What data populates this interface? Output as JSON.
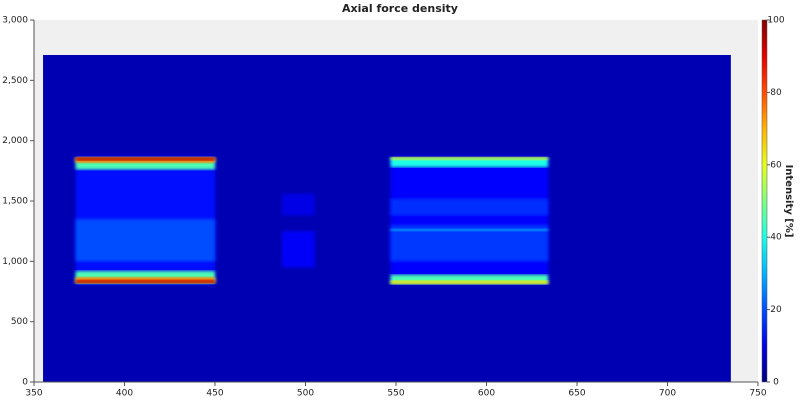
{
  "chart_data": {
    "type": "heatmap",
    "title": "Axial force density",
    "colorbar_label": "Intensity [%]",
    "colormap": "jet",
    "xlim": [
      350,
      750
    ],
    "xticks": [
      350,
      400,
      450,
      500,
      550,
      600,
      650,
      700,
      750
    ],
    "ylim": [
      0,
      3000
    ],
    "yticks": [
      0,
      500,
      {
        "value": 1000,
        "label": "1,000"
      },
      {
        "value": 1500,
        "label": "1,500"
      },
      {
        "value": 2000,
        "label": "2,000"
      },
      {
        "value": 2500,
        "label": "2,500"
      },
      {
        "value": 3000,
        "label": "3,000"
      }
    ],
    "zlim": [
      0,
      100
    ],
    "zticks": [
      0,
      20,
      40,
      60,
      80,
      100
    ],
    "regions": [
      {
        "x": [
          355,
          735
        ],
        "y": [
          0,
          2710
        ],
        "value": 5
      },
      {
        "x": [
          373,
          450
        ],
        "y": [
          810,
          1870
        ],
        "value": 14
      },
      {
        "x": [
          373,
          450
        ],
        "y": [
          1000,
          1350
        ],
        "value": 20
      },
      {
        "x": [
          487,
          505
        ],
        "y": [
          950,
          1250
        ],
        "value": 12
      },
      {
        "x": [
          487,
          505
        ],
        "y": [
          1380,
          1560
        ],
        "value": 10
      },
      {
        "x": [
          547,
          634
        ],
        "y": [
          810,
          1870
        ],
        "value": 13
      },
      {
        "x": [
          547,
          634
        ],
        "y": [
          1000,
          1300
        ],
        "value": 18
      },
      {
        "x": [
          547,
          634
        ],
        "y": [
          1380,
          1520
        ],
        "value": 17
      },
      {
        "x": [
          547,
          634
        ],
        "y": [
          1250,
          1270
        ],
        "value": 30
      },
      {
        "x": [
          373,
          450
        ],
        "y": [
          1760,
          1860
        ],
        "value": 45
      },
      {
        "x": [
          373,
          450
        ],
        "y": [
          1815,
          1865
        ],
        "value": 75
      },
      {
        "x": [
          373,
          450
        ],
        "y": [
          1835,
          1860
        ],
        "value": 95
      },
      {
        "x": [
          373,
          450
        ],
        "y": [
          815,
          920
        ],
        "value": 45
      },
      {
        "x": [
          373,
          450
        ],
        "y": [
          815,
          870
        ],
        "value": 75
      },
      {
        "x": [
          373,
          450
        ],
        "y": [
          820,
          845
        ],
        "value": 95
      },
      {
        "x": [
          547,
          634
        ],
        "y": [
          1780,
          1860
        ],
        "value": 40
      },
      {
        "x": [
          547,
          634
        ],
        "y": [
          1840,
          1865
        ],
        "value": 60
      },
      {
        "x": [
          547,
          634
        ],
        "y": [
          810,
          890
        ],
        "value": 45
      },
      {
        "x": [
          547,
          634
        ],
        "y": [
          810,
          840
        ],
        "value": 65
      }
    ]
  }
}
